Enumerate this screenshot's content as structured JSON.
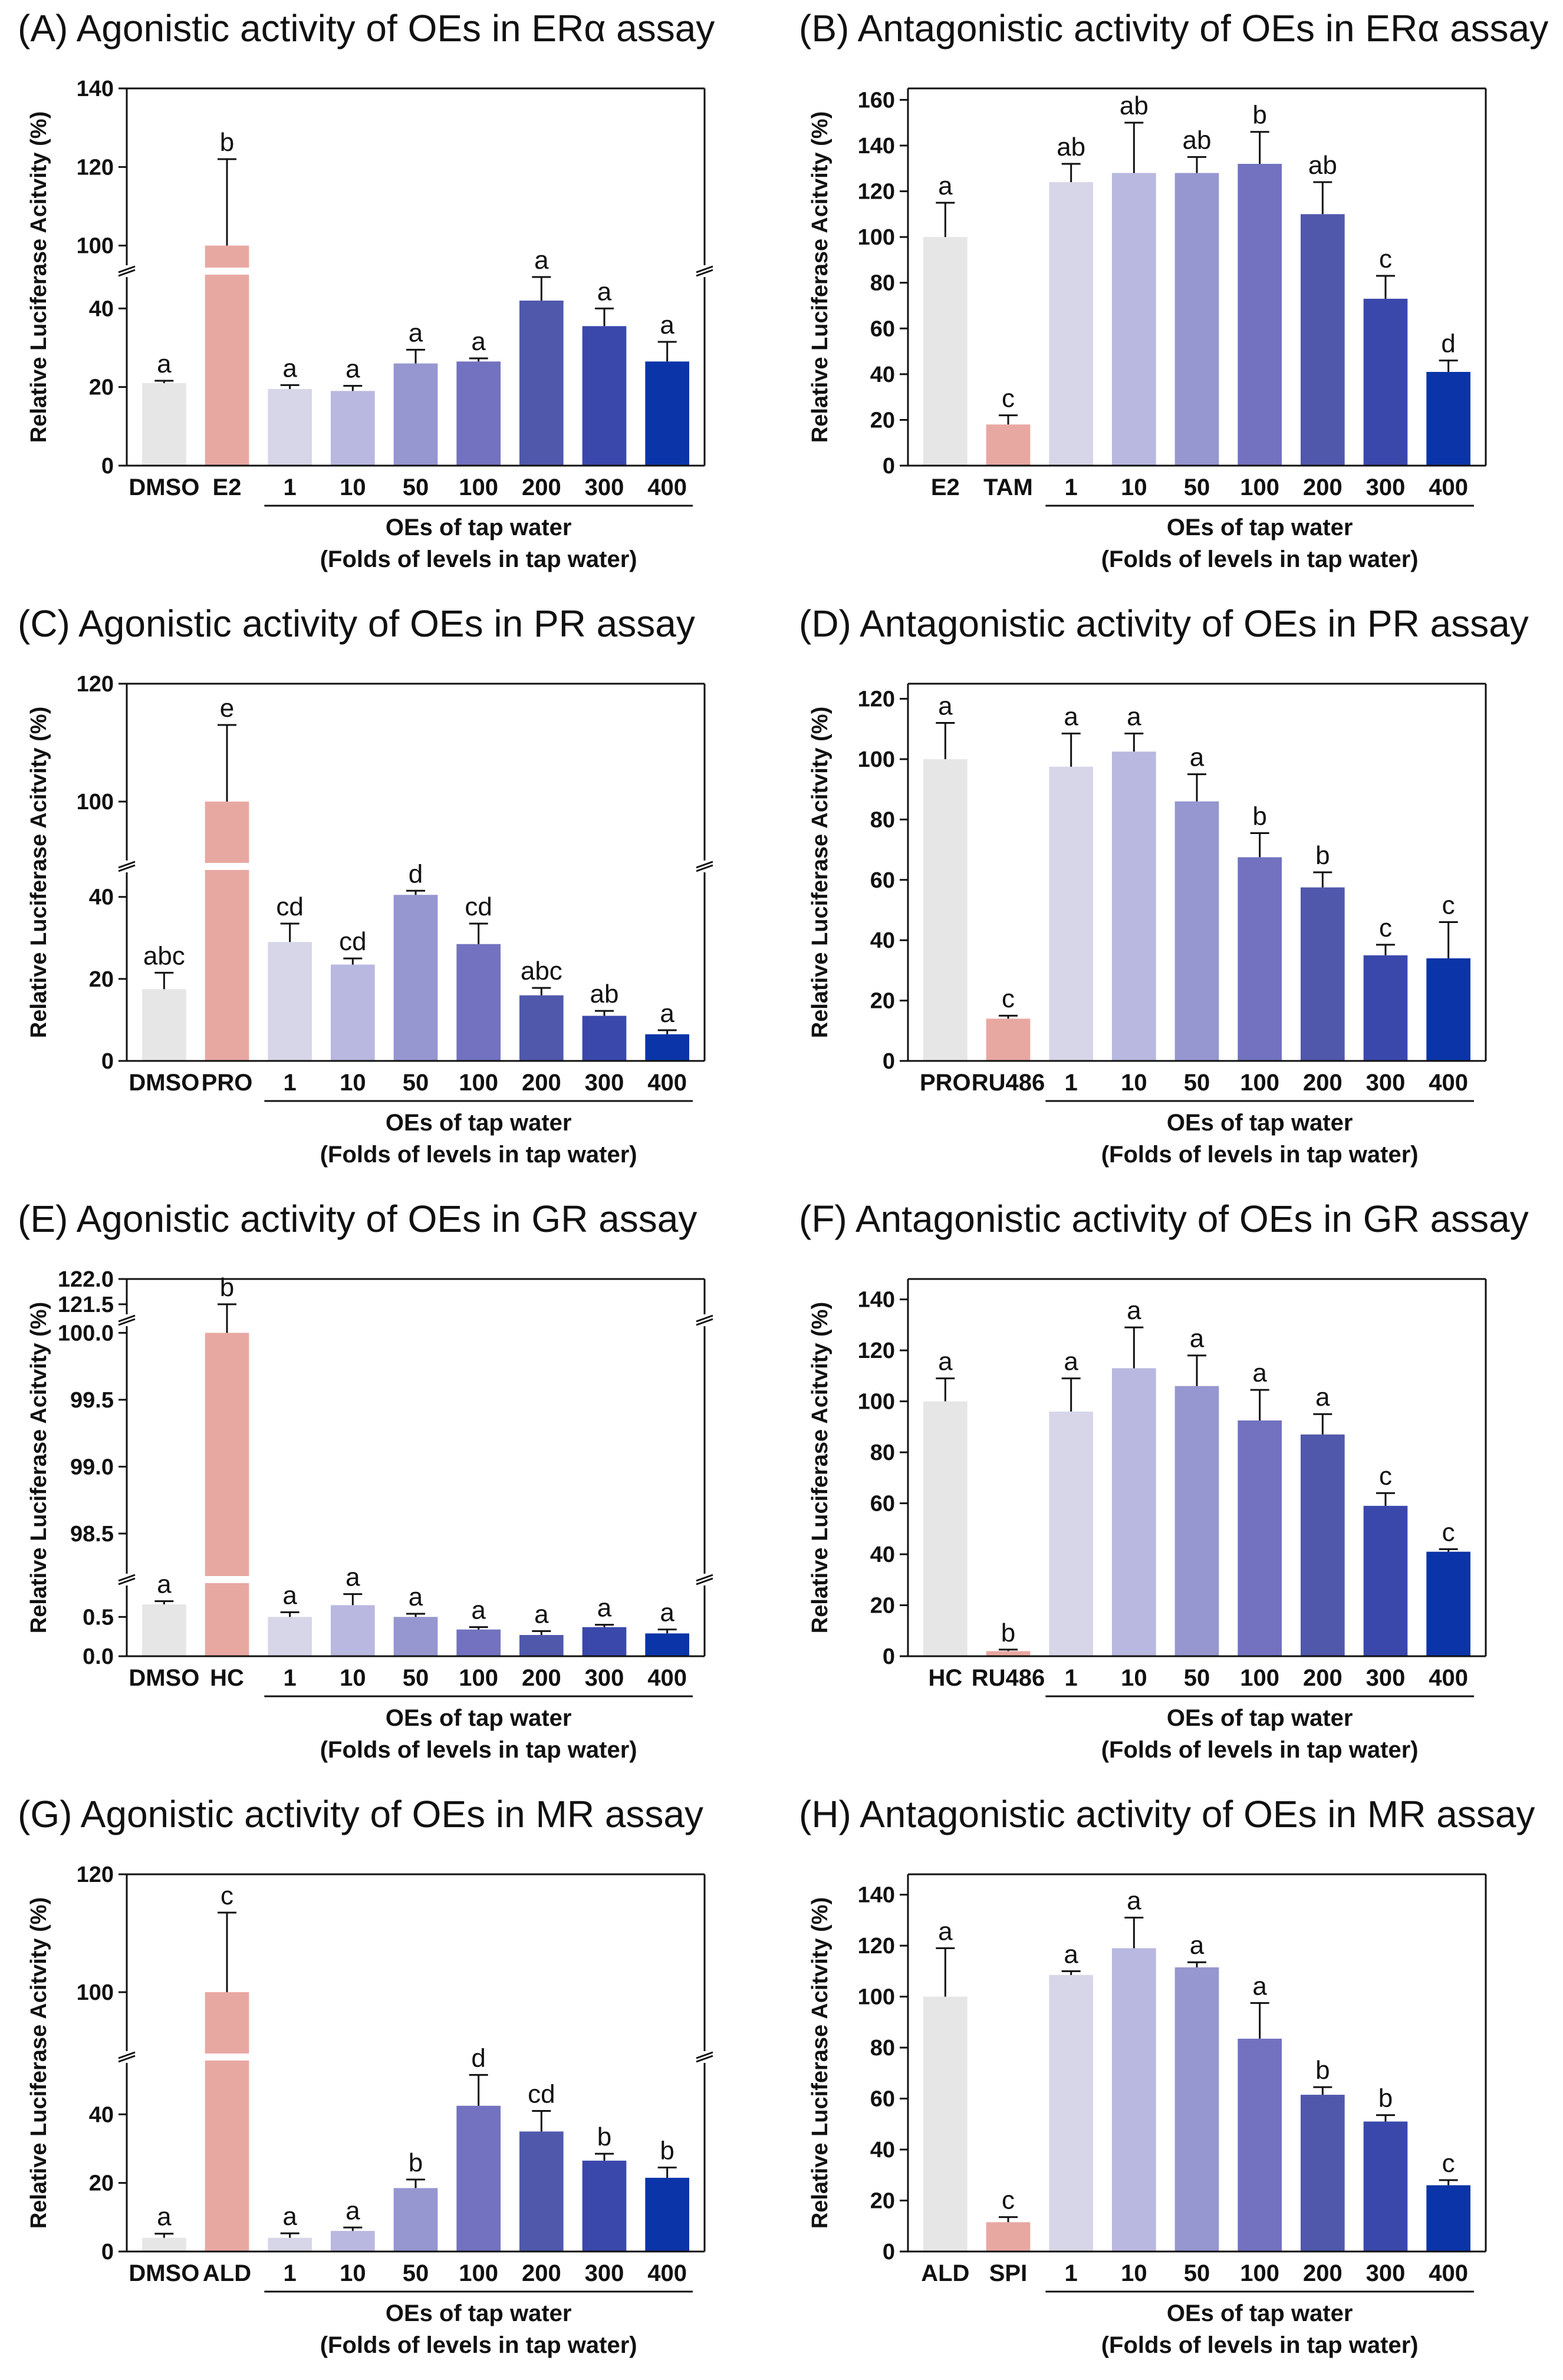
{
  "figure": {
    "group_label": "OEs of tap water",
    "group_sublabel": "(Folds of levels in tap water)",
    "ylabel": "Relative Luciferase Acitvity (%)"
  },
  "chart_data": [
    {
      "id": "A",
      "type": "bar",
      "title": "(A) Agonistic activity of OEs in ERα assay",
      "ylabel": "Relative Luciferase Acitvity (%)",
      "categories": [
        "DMSO",
        "E2",
        "1",
        "10",
        "50",
        "100",
        "200",
        "300",
        "400"
      ],
      "values": [
        21,
        100,
        19.5,
        19,
        26,
        26.5,
        42,
        35.5,
        26.5
      ],
      "errors": [
        0.6,
        22,
        1,
        1.3,
        3.5,
        0.8,
        9,
        4.5,
        5
      ],
      "letters": [
        "a",
        "b",
        "a",
        "a",
        "a",
        "a",
        "a",
        "a",
        "a"
      ],
      "axis_break": true,
      "lower_ylim": [
        0,
        48
      ],
      "lower_ticks": [
        "0",
        "20",
        "40"
      ],
      "upper_ylim": [
        95,
        140
      ],
      "upper_ticks": [
        "100",
        "120",
        "140"
      ],
      "group_label": "OEs of tap water",
      "group_sublabel": "(Folds of levels in tap water)"
    },
    {
      "id": "B",
      "type": "bar",
      "title": "(B) Antagonistic activity of OEs in ERα assay",
      "ylabel": "Relative Luciferase Acitvity (%)",
      "categories": [
        "E2",
        "TAM",
        "1",
        "10",
        "50",
        "100",
        "200",
        "300",
        "400"
      ],
      "values": [
        100,
        18,
        124,
        128,
        128,
        132,
        110,
        73,
        41
      ],
      "errors": [
        15,
        4,
        8,
        22,
        7,
        14,
        14,
        10,
        5
      ],
      "letters": [
        "a",
        "c",
        "ab",
        "ab",
        "ab",
        "b",
        "ab",
        "c",
        "d"
      ],
      "axis_break": false,
      "ylim": [
        0,
        165
      ],
      "ticks": [
        "0",
        "20",
        "40",
        "60",
        "80",
        "100",
        "120",
        "140",
        "160"
      ],
      "group_label": "OEs of tap water",
      "group_sublabel": "(Folds of levels in tap water)"
    },
    {
      "id": "C",
      "type": "bar",
      "title": "(C) Agonistic activity of OEs in PR assay",
      "ylabel": "Relative Luciferase Acitvity (%)",
      "categories": [
        "DMSO",
        "PRO",
        "1",
        "10",
        "50",
        "100",
        "200",
        "300",
        "400"
      ],
      "values": [
        17.5,
        100,
        29,
        23.5,
        40.5,
        28.5,
        16,
        11,
        6.5
      ],
      "errors": [
        4,
        13,
        4.5,
        1.5,
        1,
        5,
        1.8,
        1.2,
        1
      ],
      "letters": [
        "abc",
        "e",
        "cd",
        "cd",
        "d",
        "cd",
        "abc",
        "ab",
        "a"
      ],
      "axis_break": true,
      "lower_ylim": [
        0,
        46
      ],
      "lower_ticks": [
        "0",
        "20",
        "40"
      ],
      "upper_ylim": [
        90,
        120
      ],
      "upper_ticks": [
        "100",
        "120"
      ],
      "group_label": "OEs of tap water",
      "group_sublabel": "(Folds of levels in tap water)"
    },
    {
      "id": "D",
      "type": "bar",
      "title": "(D) Antagonistic activity of OEs in PR assay",
      "ylabel": "Relative Luciferase Acitvity (%)",
      "categories": [
        "PRO",
        "RU486",
        "1",
        "10",
        "50",
        "100",
        "200",
        "300",
        "400"
      ],
      "values": [
        100,
        14,
        97.5,
        102.5,
        86,
        67.5,
        57.5,
        35,
        34
      ],
      "errors": [
        12,
        1,
        11,
        6,
        9,
        8,
        5,
        3.5,
        12
      ],
      "letters": [
        "a",
        "c",
        "a",
        "a",
        "a",
        "b",
        "b",
        "c",
        "c"
      ],
      "axis_break": false,
      "ylim": [
        0,
        125
      ],
      "ticks": [
        "0",
        "20",
        "40",
        "60",
        "80",
        "100",
        "120"
      ],
      "group_label": "OEs of tap water",
      "group_sublabel": "(Folds of levels in tap water)"
    },
    {
      "id": "E",
      "type": "bar",
      "title": "(E) Agonistic activity of OEs in GR assay",
      "ylabel": "Relative Luciferase Acitvity (%)",
      "categories": [
        "DMSO",
        "HC",
        "1",
        "10",
        "50",
        "100",
        "200",
        "300",
        "400"
      ],
      "values": [
        0.66,
        100,
        0.5,
        0.65,
        0.5,
        0.34,
        0.27,
        0.37,
        0.29
      ],
      "errors": [
        0.04,
        21.5,
        0.06,
        0.14,
        0.04,
        0.03,
        0.05,
        0.03,
        0.05
      ],
      "letters": [
        "a",
        "b",
        "a",
        "a",
        "a",
        "a",
        "a",
        "a",
        "a"
      ],
      "axis_break": true,
      "segments": [
        {
          "ylim": [
            0,
            0.9
          ],
          "ticks": [
            "0.0",
            "0.5"
          ]
        },
        {
          "ylim": [
            98.2,
            100.05
          ],
          "ticks": [
            "98.5",
            "99.0",
            "99.5",
            "100.0"
          ]
        },
        {
          "ylim": [
            121.3,
            122.0
          ],
          "ticks": [
            "121.5",
            "122.0"
          ]
        }
      ],
      "group_label": "OEs of tap water",
      "group_sublabel": "(Folds of levels in tap water)"
    },
    {
      "id": "F",
      "type": "bar",
      "title": "(F) Antagonistic activity of OEs in GR assay",
      "ylabel": "Relative Luciferase Acitvity (%)",
      "categories": [
        "HC",
        "RU486",
        "1",
        "10",
        "50",
        "100",
        "200",
        "300",
        "400"
      ],
      "values": [
        100,
        2,
        96,
        113,
        106,
        92.5,
        87,
        59,
        41
      ],
      "errors": [
        9,
        0.6,
        13,
        16,
        12,
        12,
        8,
        5,
        1
      ],
      "letters": [
        "a",
        "b",
        "a",
        "a",
        "a",
        "a",
        "a",
        "c",
        "c"
      ],
      "axis_break": false,
      "ylim": [
        0,
        148
      ],
      "ticks": [
        "0",
        "20",
        "40",
        "60",
        "80",
        "100",
        "120",
        "140"
      ],
      "group_label": "OEs of tap water",
      "group_sublabel": "(Folds of levels in tap water)"
    },
    {
      "id": "G",
      "type": "bar",
      "title": "(G) Agonistic activity of OEs in MR assay",
      "ylabel": "Relative Luciferase Acitvity (%)",
      "categories": [
        "DMSO",
        "ALD",
        "1",
        "10",
        "50",
        "100",
        "200",
        "300",
        "400"
      ],
      "values": [
        4,
        100,
        4,
        6,
        18.5,
        42.5,
        35,
        26.5,
        21.5
      ],
      "errors": [
        1.2,
        13.5,
        1.3,
        1,
        2.5,
        9,
        6,
        2,
        3
      ],
      "letters": [
        "a",
        "c",
        "a",
        "a",
        "b",
        "d",
        "cd",
        "b",
        "b"
      ],
      "axis_break": true,
      "lower_ylim": [
        0,
        55
      ],
      "lower_ticks": [
        "0",
        "20",
        "40"
      ],
      "upper_ylim": [
        90,
        120
      ],
      "upper_ticks": [
        "100",
        "120"
      ],
      "group_label": "OEs of tap water",
      "group_sublabel": "(Folds of levels in tap water)"
    },
    {
      "id": "H",
      "type": "bar",
      "title": "(H) Antagonistic activity of OEs in MR assay",
      "ylabel": "Relative Luciferase Acitvity (%)",
      "categories": [
        "ALD",
        "SPI",
        "1",
        "10",
        "50",
        "100",
        "200",
        "300",
        "400"
      ],
      "values": [
        100,
        11.5,
        108.5,
        119,
        111.5,
        83.5,
        61.5,
        51,
        26
      ],
      "errors": [
        19,
        2,
        1.5,
        12,
        2,
        14,
        3,
        2.5,
        2
      ],
      "letters": [
        "a",
        "c",
        "a",
        "a",
        "a",
        "a",
        "b",
        "b",
        "c"
      ],
      "axis_break": false,
      "ylim": [
        0,
        148
      ],
      "ticks": [
        "0",
        "20",
        "40",
        "60",
        "80",
        "100",
        "120",
        "140"
      ],
      "group_label": "OEs of tap water",
      "group_sublabel": "(Folds of levels in tap water)"
    }
  ],
  "style": {
    "bar_colors": [
      "#e6e6e6",
      "#e8a8a2",
      "#d6d6e8",
      "#b8b8e0",
      "#9696d0",
      "#7272c0",
      "#5058ac",
      "#3a48ac",
      "#0a34a8"
    ],
    "axis_color": "#111111"
  }
}
